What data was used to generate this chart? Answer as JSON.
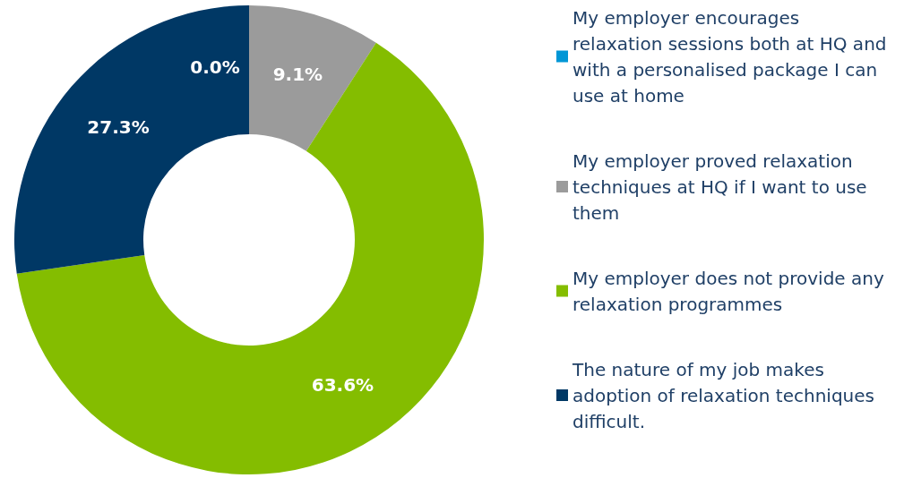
{
  "chart_data": {
    "type": "donut",
    "categories": [
      "My employer encourages relaxation sessions both at HQ and with a personalised package I can use at home",
      "My employer proved relaxation techniques at HQ if I want to use them",
      "My employer does not provide any relaxation programmes",
      "The nature of my job makes adoption of relaxation techniques difficult."
    ],
    "values": [
      0.0,
      9.1,
      63.6,
      27.3
    ],
    "colors": [
      "#0096d6",
      "#9b9b9b",
      "#84bd00",
      "#003865"
    ],
    "value_labels": [
      "0.0%",
      "9.1%",
      "63.6%",
      "27.3%"
    ],
    "legend": "right"
  }
}
